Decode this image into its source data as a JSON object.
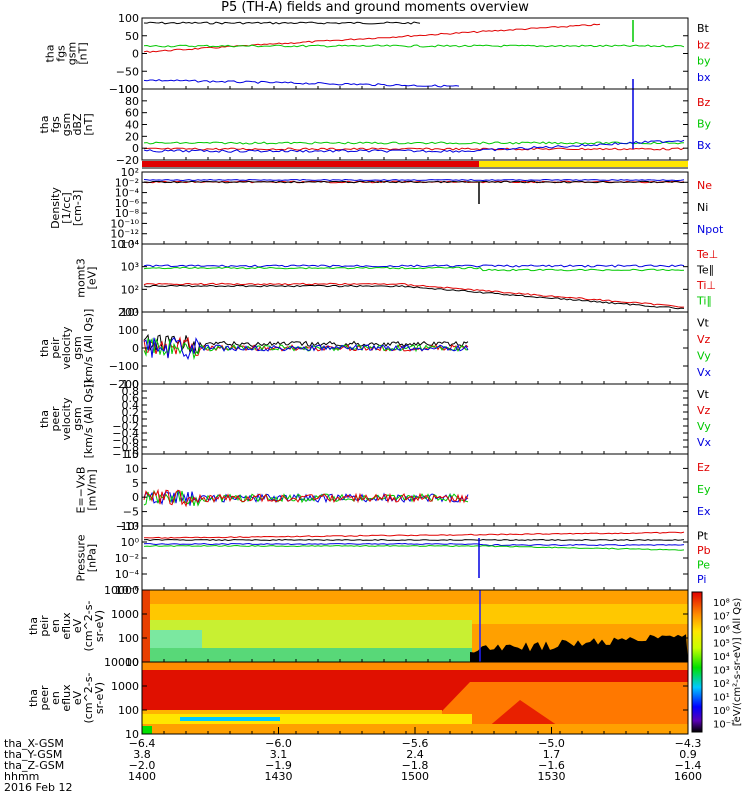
{
  "title": "P5 (TH-A) fields and ground moments overview",
  "colors": {
    "black": "#000000",
    "red": "#e00000",
    "green": "#00c800",
    "blue": "#0000e0",
    "yellow": "#ffe600"
  },
  "chart_data": [
    {
      "type": "line",
      "ylabel": [
        "tha",
        "fgs",
        "gsm",
        "[nT]"
      ],
      "yticks": [
        "100",
        "50",
        "0",
        "−50",
        "−100"
      ],
      "ylim": [
        -100,
        100
      ],
      "series": [
        {
          "name": "Bt",
          "color": "black"
        },
        {
          "name": "bz",
          "color": "red"
        },
        {
          "name": "by",
          "color": "green"
        },
        {
          "name": "bx",
          "color": "blue"
        }
      ]
    },
    {
      "type": "line",
      "ylabel": [
        "tha",
        "fgs",
        "gsm",
        "dBZ",
        "[nT]"
      ],
      "yticks": [
        "100",
        "80",
        "60",
        "40",
        "20",
        "0",
        "−20"
      ],
      "ylim": [
        -40,
        100
      ],
      "series": [
        {
          "name": "Bz",
          "color": "red"
        },
        {
          "name": "By",
          "color": "green"
        },
        {
          "name": "Bx",
          "color": "blue"
        }
      ]
    },
    {
      "type": "line",
      "ylabel": [
        "Density",
        "[1/cc]",
        "[cm-3]"
      ],
      "yticks": [
        "10²",
        "10⁻²",
        "10⁻⁴",
        "10⁻⁶",
        "10⁻⁸",
        "10⁻¹⁰",
        "10⁻¹²",
        "10⁻¹⁴"
      ],
      "series": [
        {
          "name": "Ne",
          "color": "red"
        },
        {
          "name": "Ni",
          "color": "black"
        },
        {
          "name": "Npot",
          "color": "blue"
        }
      ]
    },
    {
      "type": "line",
      "ylabel": [
        "momt3",
        "[eV]"
      ],
      "yticks": [
        "10⁴",
        "10³",
        "10²",
        "10¹"
      ],
      "series": [
        {
          "name": "Te⊥",
          "color": "red"
        },
        {
          "name": "Te∥",
          "color": "black"
        },
        {
          "name": "Ti⊥",
          "color": "red"
        },
        {
          "name": "Ti∥",
          "color": "green"
        }
      ]
    },
    {
      "type": "line",
      "ylabel": [
        "tha",
        "peir",
        "velocity",
        "gsm",
        "[km/s (All Qs)]"
      ],
      "yticks": [
        "200",
        "100",
        "0",
        "−100",
        "−200"
      ],
      "ylim": [
        -200,
        200
      ],
      "series": [
        {
          "name": "Vt",
          "color": "black"
        },
        {
          "name": "Vz",
          "color": "red"
        },
        {
          "name": "Vy",
          "color": "green"
        },
        {
          "name": "Vx",
          "color": "blue"
        }
      ]
    },
    {
      "type": "line",
      "ylabel": [
        "tha",
        "peer",
        "velocity",
        "gsm",
        "[km/s (All Qs)]"
      ],
      "yticks": [
        "1.0",
        "0.8",
        "0.6",
        "0.4",
        "0.2",
        "0.0",
        "−0.2",
        "−0.4",
        "−0.6",
        "−0.8",
        "−1.0"
      ],
      "ylim": [
        -1,
        1
      ],
      "series": [
        {
          "name": "Vt",
          "color": "black"
        },
        {
          "name": "Vz",
          "color": "red"
        },
        {
          "name": "Vy",
          "color": "green"
        },
        {
          "name": "Vx",
          "color": "blue"
        }
      ]
    },
    {
      "type": "line",
      "ylabel": [
        "E=−VxB",
        "[mV/m]"
      ],
      "yticks": [
        "15",
        "10",
        "5",
        "0",
        "−5",
        "−10"
      ],
      "ylim": [
        -10,
        15
      ],
      "series": [
        {
          "name": "Ez",
          "color": "red"
        },
        {
          "name": "Ey",
          "color": "green"
        },
        {
          "name": "Ex",
          "color": "blue"
        }
      ]
    },
    {
      "type": "line",
      "ylabel": [
        "Pressure",
        "[nPa]"
      ],
      "yticks": [
        "10²",
        "10⁰",
        "10⁻²",
        "10⁻⁴",
        "10⁻⁶"
      ],
      "series": [
        {
          "name": "Pt",
          "color": "black"
        },
        {
          "name": "Pb",
          "color": "red"
        },
        {
          "name": "Pe",
          "color": "green"
        },
        {
          "name": "Pi",
          "color": "blue"
        }
      ]
    },
    {
      "type": "heatmap",
      "ylabel": [
        "tha",
        "peir",
        "en",
        "eflux",
        "eV",
        "(cm^2-s-",
        "sr-eV)"
      ],
      "yticks": [
        "10000",
        "1000",
        "100",
        "10"
      ]
    },
    {
      "type": "heatmap",
      "ylabel": [
        "tha",
        "peer",
        "en",
        "eflux",
        "eV",
        "(cm^2-s-",
        "sr-eV)"
      ],
      "yticks": [
        "10000",
        "1000",
        "100",
        "10"
      ]
    }
  ],
  "colorbar": {
    "label": "[eV/(cm²-s-sr-eV)] (All Qs)",
    "ticks": [
      "10⁸",
      "10⁷",
      "10⁶",
      "10⁵",
      "10⁴",
      "10³",
      "10²",
      "10¹",
      "10⁰",
      "10⁻¹"
    ]
  },
  "xaxis": {
    "tick_labels": [
      {
        "x": "−6.4",
        "y": "3.8",
        "z": "−2.0",
        "hhmm": "1400"
      },
      {
        "x": "−6.0",
        "y": "3.1",
        "z": "−1.9",
        "hhmm": "1430"
      },
      {
        "x": "−5.6",
        "y": "2.4",
        "z": "−1.8",
        "hhmm": "1500"
      },
      {
        "x": "−5.0",
        "y": "1.7",
        "z": "−1.6",
        "hhmm": "1530"
      },
      {
        "x": "−4.3",
        "y": "0.9",
        "z": "−1.4",
        "hhmm": "1600"
      }
    ],
    "row_labels": [
      "tha_X-GSM",
      "tha_Y-GSM",
      "tha_Z-GSM",
      "hhmm"
    ],
    "date": "2016 Feb 12"
  }
}
